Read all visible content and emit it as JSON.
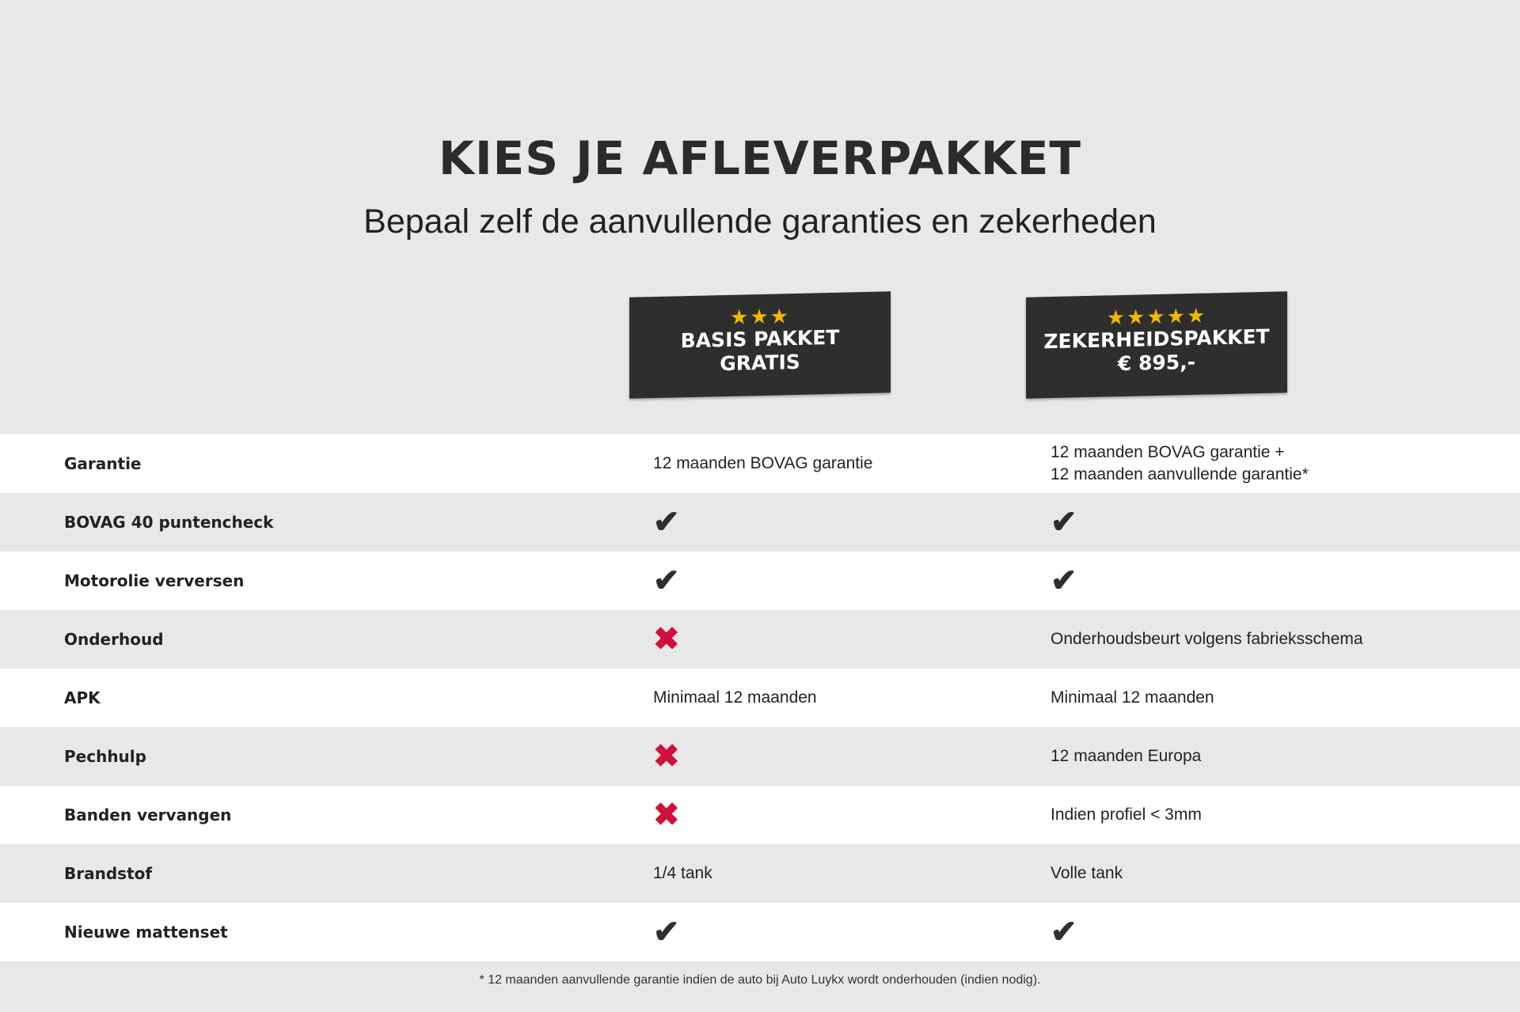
{
  "header": {
    "title": "KIES JE AFLEVERPAKKET",
    "subtitle": "Bepaal zelf de aanvullende garanties en zekerheden"
  },
  "packages": [
    {
      "stars": "★★★",
      "star_count": 3,
      "name": "BASIS PAKKET",
      "price": "GRATIS"
    },
    {
      "stars": "★★★★★",
      "star_count": 5,
      "name": "ZEKERHEIDSPAKKET",
      "price": "€ 895,-"
    }
  ],
  "colors": {
    "check": "#2e2e2e",
    "cross": "#d0103a",
    "star": "#f5b800",
    "badge": "#2e2e2e"
  },
  "rows": [
    {
      "label": "Garantie",
      "basis": {
        "type": "text",
        "text": "12 maanden BOVAG garantie"
      },
      "zekerheid": {
        "type": "text",
        "text": "12 maanden BOVAG garantie +\n12 maanden aanvullende garantie*"
      }
    },
    {
      "label": "BOVAG 40 puntencheck",
      "basis": {
        "type": "check",
        "text": "✔"
      },
      "zekerheid": {
        "type": "check",
        "text": "✔"
      }
    },
    {
      "label": "Motorolie verversen",
      "basis": {
        "type": "check",
        "text": "✔"
      },
      "zekerheid": {
        "type": "check",
        "text": "✔"
      }
    },
    {
      "label": "Onderhoud",
      "basis": {
        "type": "cross",
        "text": "✖"
      },
      "zekerheid": {
        "type": "text",
        "text": "Onderhoudsbeurt volgens fabrieksschema"
      }
    },
    {
      "label": "APK",
      "basis": {
        "type": "text",
        "text": "Minimaal 12 maanden"
      },
      "zekerheid": {
        "type": "text",
        "text": "Minimaal 12 maanden"
      }
    },
    {
      "label": "Pechhulp",
      "basis": {
        "type": "cross",
        "text": "✖"
      },
      "zekerheid": {
        "type": "text",
        "text": "12 maanden Europa"
      }
    },
    {
      "label": "Banden vervangen",
      "basis": {
        "type": "cross",
        "text": "✖"
      },
      "zekerheid": {
        "type": "text",
        "text": "Indien profiel < 3mm"
      }
    },
    {
      "label": "Brandstof",
      "basis": {
        "type": "text",
        "text": "1/4 tank"
      },
      "zekerheid": {
        "type": "text",
        "text": "Volle tank"
      }
    },
    {
      "label": "Nieuwe mattenset",
      "basis": {
        "type": "check",
        "text": "✔"
      },
      "zekerheid": {
        "type": "check",
        "text": "✔"
      }
    }
  ],
  "footer": {
    "note": "* 12 maanden aanvullende garantie indien de auto bij Auto Luykx wordt onderhouden (indien nodig)."
  }
}
